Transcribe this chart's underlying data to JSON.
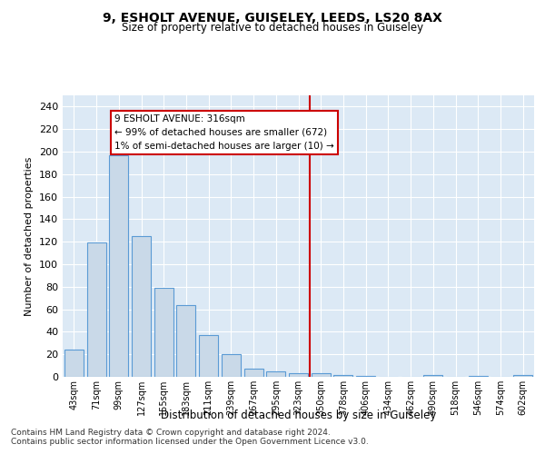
{
  "title": "9, ESHOLT AVENUE, GUISELEY, LEEDS, LS20 8AX",
  "subtitle": "Size of property relative to detached houses in Guiseley",
  "xlabel": "Distribution of detached houses by size in Guiseley",
  "ylabel": "Number of detached properties",
  "bar_labels": [
    "43sqm",
    "71sqm",
    "99sqm",
    "127sqm",
    "155sqm",
    "183sqm",
    "211sqm",
    "239sqm",
    "267sqm",
    "295sqm",
    "323sqm",
    "350sqm",
    "378sqm",
    "406sqm",
    "434sqm",
    "462sqm",
    "490sqm",
    "518sqm",
    "546sqm",
    "574sqm",
    "602sqm"
  ],
  "bar_values": [
    24,
    119,
    197,
    125,
    79,
    64,
    37,
    20,
    7,
    5,
    3,
    3,
    2,
    1,
    0,
    0,
    2,
    0,
    1,
    0,
    2
  ],
  "bar_color": "#c9d9e8",
  "bar_edge_color": "#5b9bd5",
  "vline_x": 10.5,
  "vline_color": "#cc0000",
  "annotation_text": "9 ESHOLT AVENUE: 316sqm\n← 99% of detached houses are smaller (672)\n1% of semi-detached houses are larger (10) →",
  "annotation_box_color": "#ffffff",
  "annotation_box_edge": "#cc0000",
  "ylim": [
    0,
    250
  ],
  "yticks": [
    0,
    20,
    40,
    60,
    80,
    100,
    120,
    140,
    160,
    180,
    200,
    220,
    240
  ],
  "bg_color": "#dce9f5",
  "grid_color": "#ffffff",
  "footer_line1": "Contains HM Land Registry data © Crown copyright and database right 2024.",
  "footer_line2": "Contains public sector information licensed under the Open Government Licence v3.0."
}
